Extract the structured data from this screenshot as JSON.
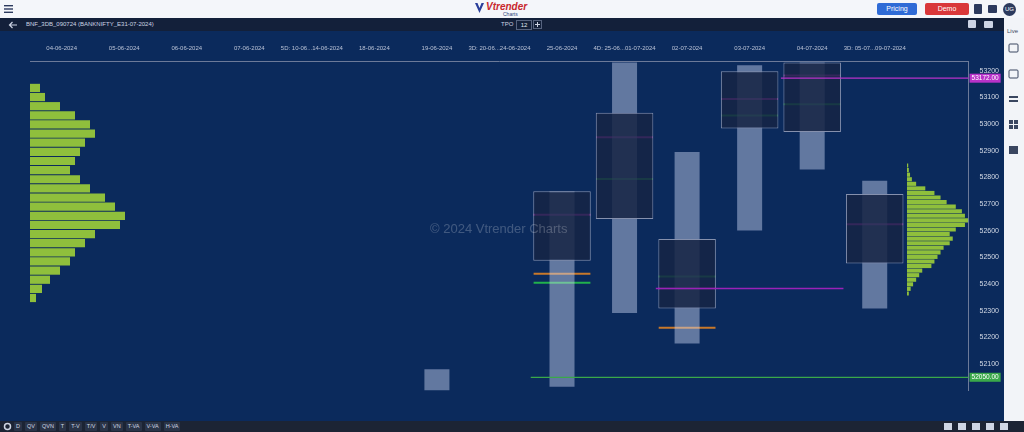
{
  "page": {
    "logo": "Vtrender",
    "logo_sub": "Charts",
    "buttons": [
      "Pricing",
      "Demo"
    ],
    "user": "UG",
    "tpo_label": "TPO",
    "tpo_value": 12,
    "side_label": "Live",
    "watermark": "© 2024 Vtrender Charts",
    "toolbar": [
      "D",
      "QV",
      "QVN",
      "T",
      "T-V",
      "T/V",
      "V",
      "VN",
      "T-VA",
      "V-VA",
      "H-VA"
    ]
  },
  "chart_data": [
    {
      "type": "bar",
      "title": "BNF_3DB_090724 (BANKNIFTY_E31-07-2024)",
      "categories": [
        "04-06-2024",
        "05-06-2024",
        "06-06-2024",
        "07-06-2024",
        "5D: 10-06...14-06-2024",
        "18-06-2024",
        "19-06-2024",
        "3D: 20-06...24-06-2024",
        "25-06-2024",
        "4D: 25-06...01-07-2024",
        "02-07-2024",
        "03-07-2024",
        "04-07-2024",
        "3D: 05-07...09-07-2024",
        null
      ],
      "series": [
        {
          "color": "rgba(22,36,68,0.85)",
          "values": [
            null,
            null,
            null,
            null,
            null,
            null,
            null,
            null,
            [
              52487,
              52748
            ],
            [
              52644,
              53042
            ],
            [
              52308,
              52569
            ],
            [
              52983,
              53198
            ],
            [
              52970,
              53231
            ],
            [
              52477,
              52738
            ],
            null
          ]
        },
        {
          "color": "rgba(205,215,245,0.45)",
          "values": [
            null,
            null,
            null,
            null,
            null,
            null,
            [
              52000,
              52080
            ],
            null,
            [
              52014,
              52748
            ],
            [
              52291,
              53231
            ],
            [
              52177,
              52895
            ],
            [
              52601,
              53221
            ],
            [
              52829,
              53231
            ],
            [
              52308,
              52787
            ],
            null
          ]
        },
        {
          "color": "#d63ad8",
          "marker": "line",
          "values": [
            null,
            null,
            null,
            null,
            null,
            null,
            null,
            null,
            52660,
            52950,
            52383,
            53094,
            53182,
            52624,
            null
          ]
        },
        {
          "color": "#22b14c",
          "marker": "line",
          "values": [
            null,
            null,
            null,
            null,
            null,
            null,
            null,
            null,
            52405,
            52794,
            52428,
            53032,
            53074,
            null,
            null
          ]
        },
        {
          "color": "#c8782a",
          "marker": "line",
          "values": [
            null,
            null,
            null,
            null,
            null,
            null,
            null,
            null,
            52438,
            null,
            52236,
            null,
            null,
            null,
            null
          ]
        }
      ],
      "ylim": [
        52000,
        53235
      ],
      "yticks": [
        52100,
        52200,
        52300,
        52400,
        52500,
        52600,
        52700,
        52800,
        52900,
        53000,
        53100,
        53200
      ],
      "grid": false,
      "annotations": [
        {
          "value": 53172,
          "label": "53172.00",
          "color": "#b832c9",
          "from": "04-07-2024"
        },
        {
          "value": 52050,
          "label": "52050.00",
          "color": "#3aa84a",
          "from": "25-06-2024"
        },
        {
          "value": 52383,
          "color": "#9a22b8",
          "from": "02-07-2024",
          "to": "04-07-2024"
        }
      ]
    },
    {
      "type": "bar",
      "orientation": "horizontal",
      "color": "#8fbf3c",
      "tick_labels": false,
      "y": [
        53220,
        53180,
        53140,
        53100,
        53060,
        53020,
        52980,
        52940,
        52900,
        52860,
        52820,
        52780,
        52740,
        52700,
        52660,
        52620,
        52580,
        52540,
        52500,
        52460,
        52420,
        52380,
        52340,
        52300
      ],
      "values": [
        10,
        15,
        30,
        45,
        60,
        65,
        55,
        50,
        45,
        40,
        50,
        60,
        75,
        85,
        95,
        90,
        65,
        55,
        45,
        40,
        30,
        20,
        12,
        6
      ],
      "xlim": [
        0,
        100
      ],
      "ylim": [
        52000,
        53235
      ]
    },
    {
      "type": "bar",
      "orientation": "horizontal",
      "color": "#8fbf3c",
      "tick_labels": false,
      "y": [
        52880,
        52860,
        52840,
        52820,
        52800,
        52780,
        52760,
        52740,
        52720,
        52700,
        52680,
        52660,
        52640,
        52620,
        52600,
        52580,
        52560,
        52540,
        52520,
        52500,
        52480,
        52460,
        52440,
        52420,
        52400,
        52380,
        52360,
        52340,
        52320
      ],
      "values": [
        2,
        3,
        5,
        8,
        15,
        30,
        45,
        55,
        65,
        80,
        90,
        95,
        100,
        95,
        80,
        70,
        75,
        70,
        60,
        55,
        50,
        45,
        40,
        25,
        20,
        15,
        10,
        6,
        3
      ],
      "xlim": [
        0,
        100
      ],
      "ylim": [
        52000,
        53235
      ]
    }
  ]
}
